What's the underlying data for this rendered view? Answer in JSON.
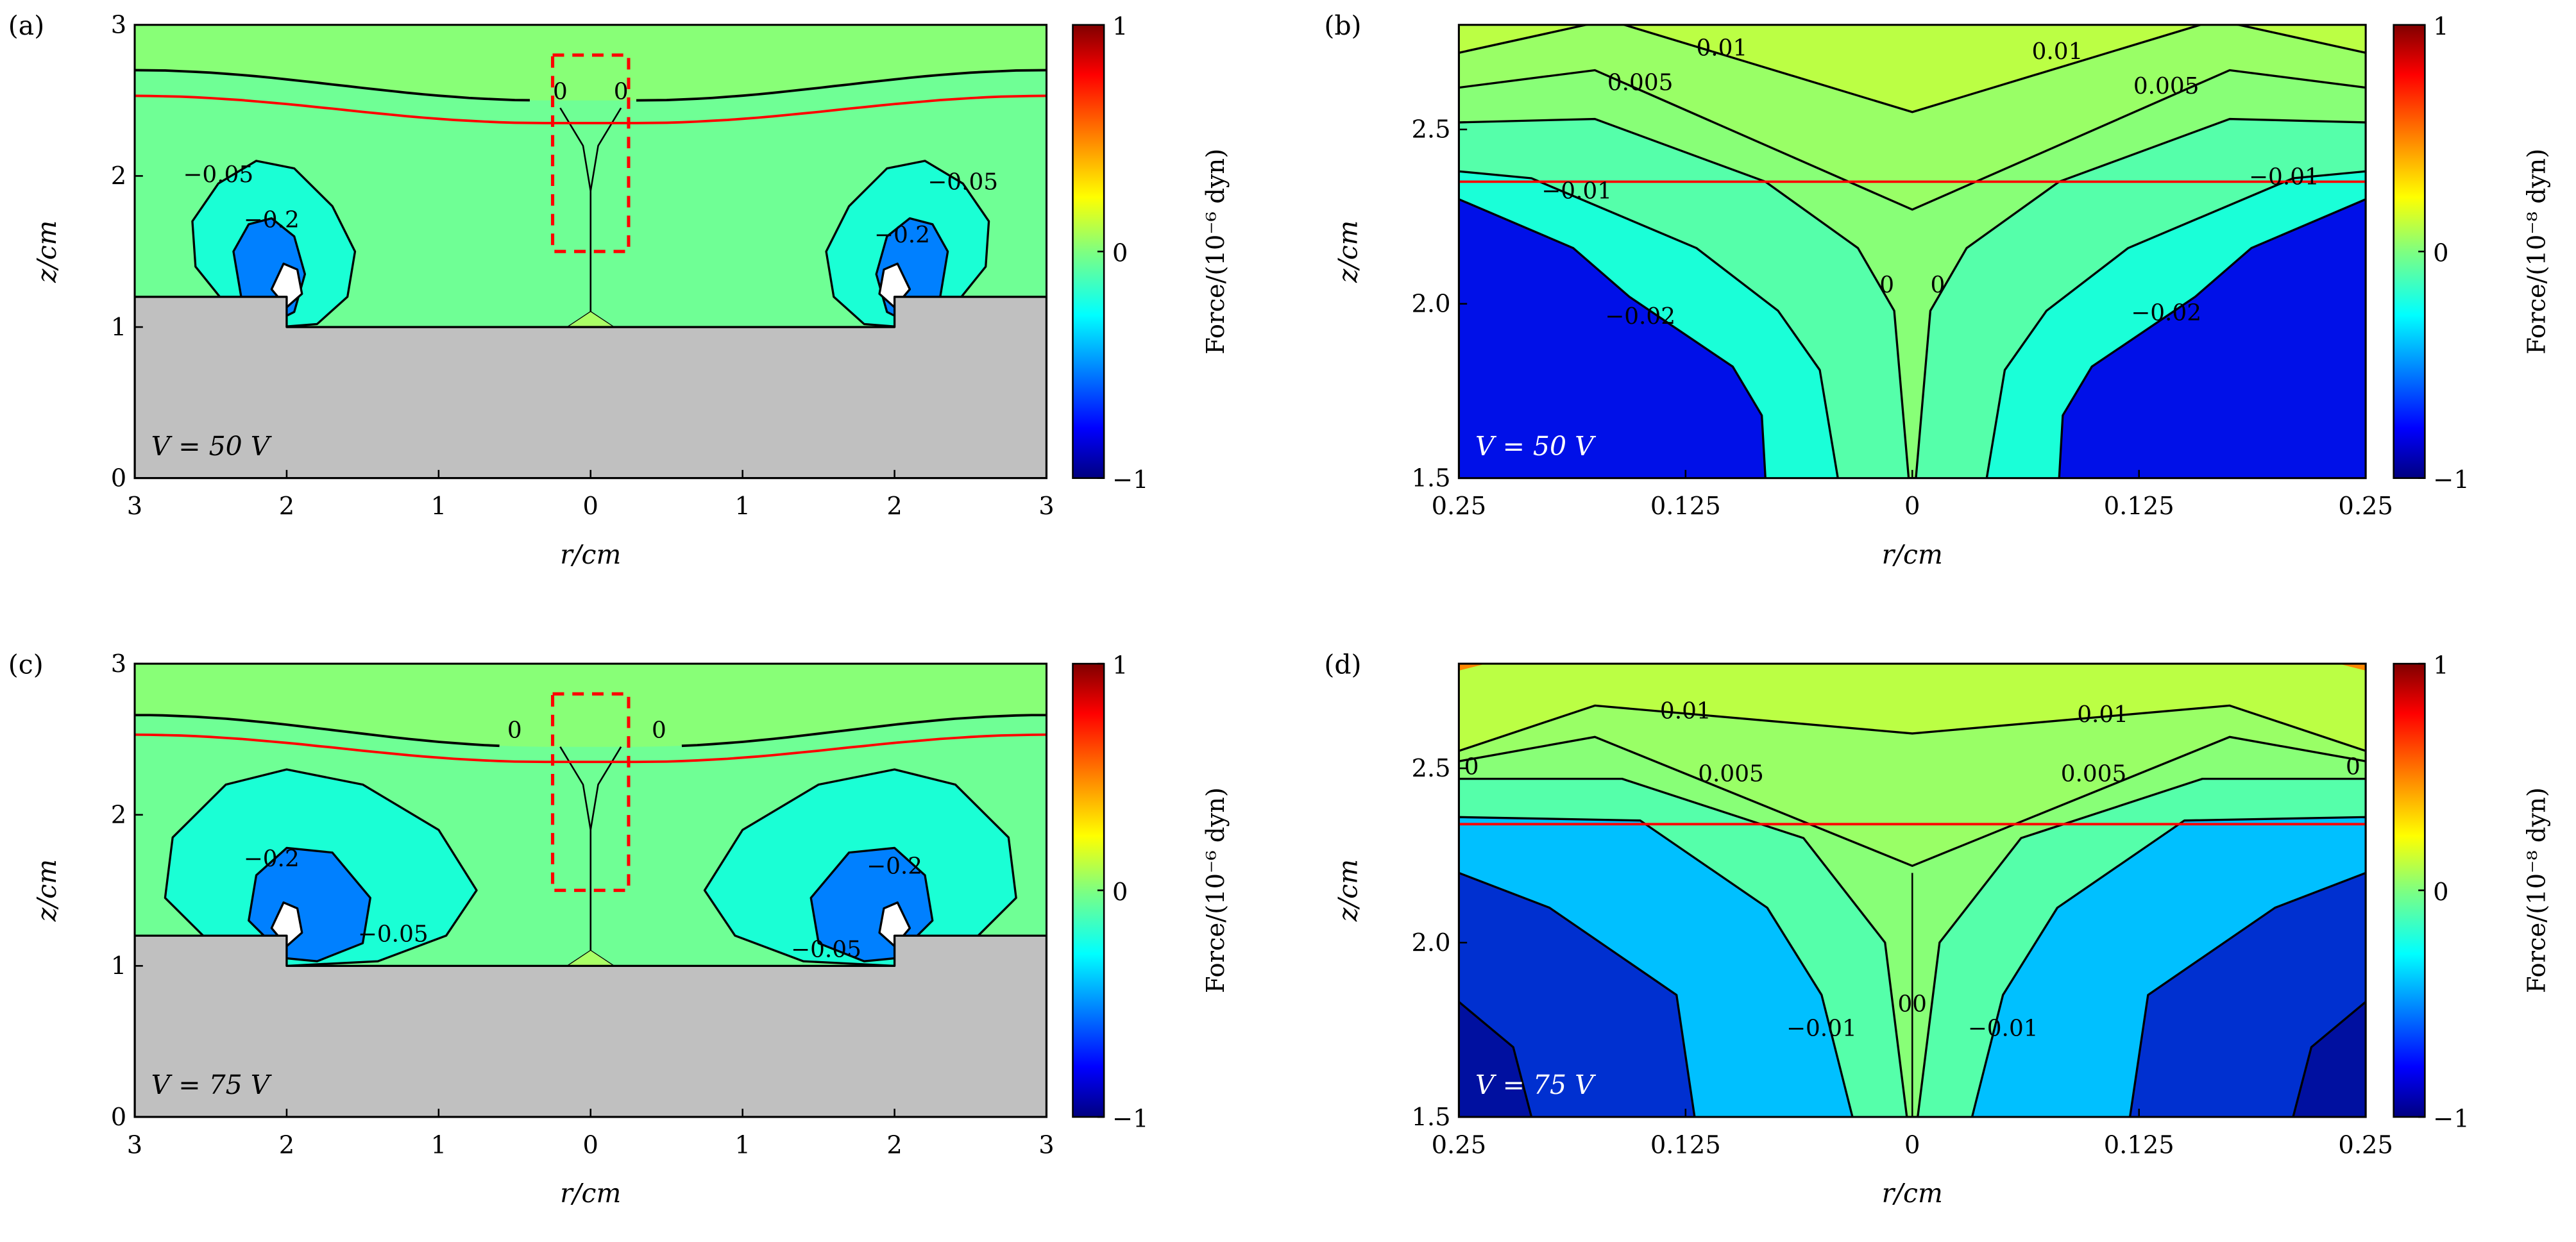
{
  "chart_data": [
    {
      "type": "heatmap",
      "panel_label": "(a)",
      "annotation": "V = 50 V",
      "annotation_color": "#000000",
      "xlabel": "r/cm",
      "ylabel": "z/cm",
      "xlim": [
        -3,
        3
      ],
      "ylim": [
        0,
        3
      ],
      "x_ticks": [
        -3,
        -2,
        -1,
        0,
        1,
        2,
        3
      ],
      "x_tick_labels": [
        "3",
        "2",
        "1",
        "0",
        "1",
        "2",
        "3"
      ],
      "y_ticks": [
        0,
        1,
        2,
        3
      ],
      "y_tick_labels": [
        "0",
        "1",
        "2",
        "3"
      ],
      "colorbar": {
        "label": "Force/(10⁻⁶ dyn)",
        "ticks": [
          "1",
          "0",
          "−1"
        ],
        "range": [
          -1,
          1
        ],
        "colormap": "jet"
      },
      "contour_labels": [
        {
          "text": "0",
          "r": -0.2,
          "z": 2.55
        },
        {
          "text": "0",
          "r": 0.2,
          "z": 2.55
        },
        {
          "text": "−0.05",
          "r": -2.45,
          "z": 2.0
        },
        {
          "text": "−0.05",
          "r": 2.45,
          "z": 1.95
        },
        {
          "text": "−0.2",
          "r": -2.1,
          "z": 1.7
        },
        {
          "text": "−0.2",
          "r": 2.05,
          "z": 1.6
        }
      ],
      "highlight_box": {
        "r": [
          -0.25,
          0.25
        ],
        "z": [
          1.5,
          2.8
        ],
        "color": "#ff0000"
      },
      "red_line_z": {
        "center": 2.35,
        "edge": 2.53
      },
      "zero_contour_z": {
        "center": 2.5,
        "edge": 2.7
      }
    },
    {
      "type": "heatmap",
      "panel_label": "(b)",
      "annotation": "V = 50 V",
      "annotation_color": "#ffffff",
      "xlabel": "r/cm",
      "ylabel": "z/cm",
      "xlim": [
        -0.25,
        0.25
      ],
      "ylim": [
        1.5,
        2.8
      ],
      "x_ticks": [
        -0.25,
        -0.125,
        0,
        0.125,
        0.25
      ],
      "x_tick_labels": [
        "0.25",
        "0.125",
        "0",
        "0.125",
        "0.25"
      ],
      "y_ticks": [
        1.5,
        2.0,
        2.5
      ],
      "y_tick_labels": [
        "1.5",
        "2.0",
        "2.5"
      ],
      "colorbar": {
        "label": "Force/(10⁻⁸ dyn)",
        "ticks": [
          "1",
          "0",
          "−1"
        ],
        "range": [
          -1,
          1
        ],
        "colormap": "jet"
      },
      "contour_labels": [
        {
          "text": "0.01",
          "r": -0.105,
          "z": 2.73
        },
        {
          "text": "0.01",
          "r": 0.08,
          "z": 2.72
        },
        {
          "text": "0.005",
          "r": -0.15,
          "z": 2.63
        },
        {
          "text": "0.005",
          "r": 0.14,
          "z": 2.62
        },
        {
          "text": "−0.01",
          "r": -0.185,
          "z": 2.32
        },
        {
          "text": "−0.01",
          "r": 0.205,
          "z": 2.36
        },
        {
          "text": "0",
          "r": -0.014,
          "z": 2.05
        },
        {
          "text": "0",
          "r": 0.014,
          "z": 2.05
        },
        {
          "text": "−0.02",
          "r": -0.15,
          "z": 1.96
        },
        {
          "text": "−0.02",
          "r": 0.14,
          "z": 1.97
        }
      ],
      "red_line_z": 2.35
    },
    {
      "type": "heatmap",
      "panel_label": "(c)",
      "annotation": "V = 75 V",
      "annotation_color": "#000000",
      "xlabel": "r/cm",
      "ylabel": "z/cm",
      "xlim": [
        -3,
        3
      ],
      "ylim": [
        0,
        3
      ],
      "x_ticks": [
        -3,
        -2,
        -1,
        0,
        1,
        2,
        3
      ],
      "x_tick_labels": [
        "3",
        "2",
        "1",
        "0",
        "1",
        "2",
        "3"
      ],
      "y_ticks": [
        0,
        1,
        2,
        3
      ],
      "y_tick_labels": [
        "0",
        "1",
        "2",
        "3"
      ],
      "colorbar": {
        "label": "Force/(10⁻⁶ dyn)",
        "ticks": [
          "1",
          "0",
          "−1"
        ],
        "range": [
          -1,
          1
        ],
        "colormap": "jet"
      },
      "contour_labels": [
        {
          "text": "0",
          "r": -0.5,
          "z": 2.55
        },
        {
          "text": "0",
          "r": 0.45,
          "z": 2.55
        },
        {
          "text": "−0.2",
          "r": -2.1,
          "z": 1.7
        },
        {
          "text": "−0.2",
          "r": 2.0,
          "z": 1.65
        },
        {
          "text": "−0.05",
          "r": -1.3,
          "z": 1.2
        },
        {
          "text": "−0.05",
          "r": 1.55,
          "z": 1.1
        }
      ],
      "highlight_box": {
        "r": [
          -0.25,
          0.25
        ],
        "z": [
          1.5,
          2.8
        ],
        "color": "#ff0000"
      },
      "red_line_z": {
        "center": 2.35,
        "edge": 2.53
      },
      "zero_contour_z": {
        "center": 2.45,
        "edge": 2.66
      }
    },
    {
      "type": "heatmap",
      "panel_label": "(d)",
      "annotation": "V = 75 V",
      "annotation_color": "#ffffff",
      "xlabel": "r/cm",
      "ylabel": "z/cm",
      "xlim": [
        -0.25,
        0.25
      ],
      "ylim": [
        1.5,
        2.8
      ],
      "x_ticks": [
        -0.25,
        -0.125,
        0,
        0.125,
        0.25
      ],
      "x_tick_labels": [
        "0.25",
        "0.125",
        "0",
        "0.125",
        "0.25"
      ],
      "y_ticks": [
        1.5,
        2.0,
        2.5
      ],
      "y_tick_labels": [
        "1.5",
        "2.0",
        "2.5"
      ],
      "colorbar": {
        "label": "Force/(10⁻⁸ dyn)",
        "ticks": [
          "1",
          "0",
          "−1"
        ],
        "range": [
          -1,
          1
        ],
        "colormap": "jet"
      },
      "contour_labels": [
        {
          "text": "0.01",
          "r": -0.125,
          "z": 2.66
        },
        {
          "text": "0.01",
          "r": 0.105,
          "z": 2.65
        },
        {
          "text": "0.005",
          "r": -0.1,
          "z": 2.48
        },
        {
          "text": "0.005",
          "r": 0.1,
          "z": 2.48
        },
        {
          "text": "0",
          "r": -0.243,
          "z": 2.5
        },
        {
          "text": "0",
          "r": 0.243,
          "z": 2.5
        },
        {
          "text": "0",
          "r": -0.004,
          "z": 1.82
        },
        {
          "text": "0",
          "r": 0.004,
          "z": 1.82
        },
        {
          "text": "−0.01",
          "r": -0.05,
          "z": 1.75
        },
        {
          "text": "−0.01",
          "r": 0.05,
          "z": 1.75
        }
      ],
      "red_line_z": 2.34
    }
  ]
}
